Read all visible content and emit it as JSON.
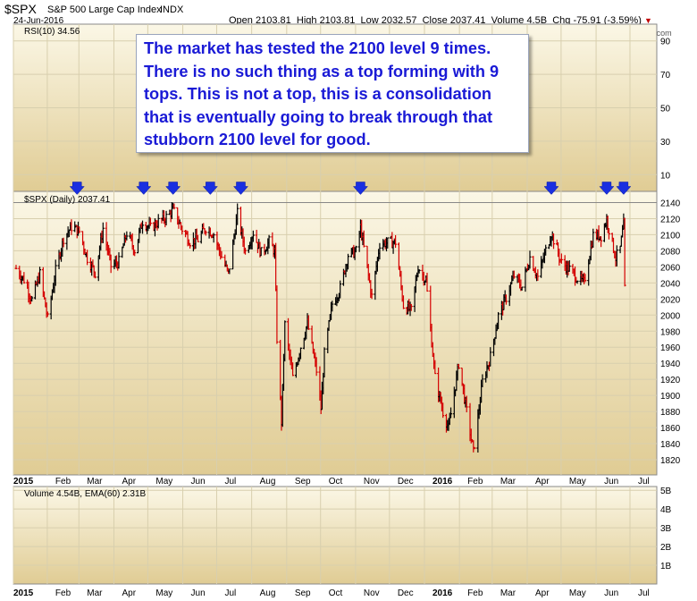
{
  "header": {
    "symbol": "$SPX",
    "name": "S&P 500 Large Cap Index",
    "exchange": "INDX",
    "date": "24-Jun-2016",
    "open_label": "Open",
    "open": "2103.81",
    "high_label": "High",
    "high": "2103.81",
    "low_label": "Low",
    "low": "2032.57",
    "close_label": "Close",
    "close": "2037.41",
    "volume_label": "Volume",
    "volume": "4.5B",
    "chg_label": "Chg",
    "chg": "-75.91 (-3.59%)",
    "chg_marker": "▼",
    "credit": "© StockCharts.com"
  },
  "annotation": [
    "The market has tested the 2100 level 9 times.",
    "There is no such thing as a top forming with 9",
    "tops. This is not a top, this is a consolidation",
    "that is eventually going to break through that",
    "stubborn 2100 level for good."
  ],
  "colors": {
    "up": "#000000",
    "down": "#d40000",
    "arrow": "#1a2fe0",
    "panel_top": "#fbf7e6",
    "panel_bottom": "#e0cc94",
    "resistance": "#888888"
  },
  "chart_data": [
    {
      "type": "line",
      "name": "rsi",
      "legend": "RSI(10) 34.56",
      "y_ticks": [
        10,
        30,
        50,
        70,
        90
      ],
      "ylim": [
        0,
        100
      ],
      "values": []
    },
    {
      "type": "ohlc",
      "name": "price",
      "legend": "$SPX (Daily) 2037.41",
      "ylim": [
        1810,
        2145
      ],
      "y_ticks": [
        1820,
        1840,
        1860,
        1880,
        1900,
        1920,
        1940,
        1960,
        1980,
        2000,
        2020,
        2040,
        2060,
        2080,
        2100,
        2120,
        2140
      ],
      "resistance": 2140,
      "x_labels": [
        "2015",
        "Feb",
        "Mar",
        "Apr",
        "May",
        "Jun",
        "Jul",
        "Aug",
        "Sep",
        "Oct",
        "Nov",
        "Dec",
        "2016",
        "Feb",
        "Mar",
        "Apr",
        "May",
        "Jun",
        "Jul"
      ],
      "path": [
        [
          "2015-01-02",
          2058
        ],
        [
          "2015-01-09",
          2044
        ],
        [
          "2015-01-16",
          2019
        ],
        [
          "2015-01-23",
          2051
        ],
        [
          "2015-01-30",
          1995
        ],
        [
          "2015-02-06",
          2055
        ],
        [
          "2015-02-13",
          2096
        ],
        [
          "2015-02-20",
          2110
        ],
        [
          "2015-02-27",
          2104
        ],
        [
          "2015-03-06",
          2071
        ],
        [
          "2015-03-13",
          2053
        ],
        [
          "2015-03-20",
          2108
        ],
        [
          "2015-03-27",
          2061
        ],
        [
          "2015-04-03",
          2066
        ],
        [
          "2015-04-10",
          2102
        ],
        [
          "2015-04-17",
          2081
        ],
        [
          "2015-04-24",
          2117
        ],
        [
          "2015-05-01",
          2108
        ],
        [
          "2015-05-08",
          2116
        ],
        [
          "2015-05-15",
          2122
        ],
        [
          "2015-05-21",
          2131
        ],
        [
          "2015-05-29",
          2107
        ],
        [
          "2015-06-05",
          2092
        ],
        [
          "2015-06-12",
          2094
        ],
        [
          "2015-06-19",
          2109
        ],
        [
          "2015-06-26",
          2101
        ],
        [
          "2015-07-02",
          2076
        ],
        [
          "2015-07-09",
          2051
        ],
        [
          "2015-07-17",
          2126
        ],
        [
          "2015-07-24",
          2079
        ],
        [
          "2015-07-31",
          2103
        ],
        [
          "2015-08-07",
          2077
        ],
        [
          "2015-08-14",
          2091
        ],
        [
          "2015-08-19",
          2079
        ],
        [
          "2015-08-21",
          1971
        ],
        [
          "2015-08-24",
          1893
        ],
        [
          "2015-08-25",
          1867
        ],
        [
          "2015-08-28",
          1988
        ],
        [
          "2015-09-04",
          1921
        ],
        [
          "2015-09-11",
          1961
        ],
        [
          "2015-09-17",
          1990
        ],
        [
          "2015-09-25",
          1931
        ],
        [
          "2015-09-29",
          1884
        ],
        [
          "2015-10-02",
          1951
        ],
        [
          "2015-10-09",
          2014
        ],
        [
          "2015-10-16",
          2033
        ],
        [
          "2015-10-23",
          2075
        ],
        [
          "2015-10-30",
          2079
        ],
        [
          "2015-11-03",
          2109
        ],
        [
          "2015-11-13",
          2023
        ],
        [
          "2015-11-20",
          2089
        ],
        [
          "2015-11-27",
          2090
        ],
        [
          "2015-12-04",
          2091
        ],
        [
          "2015-12-11",
          2012
        ],
        [
          "2015-12-18",
          2005
        ],
        [
          "2015-12-24",
          2060
        ],
        [
          "2015-12-31",
          2043
        ],
        [
          "2016-01-08",
          1922
        ],
        [
          "2016-01-15",
          1880
        ],
        [
          "2016-01-20",
          1859
        ],
        [
          "2016-01-29",
          1940
        ],
        [
          "2016-02-05",
          1880
        ],
        [
          "2016-02-11",
          1829
        ],
        [
          "2016-02-19",
          1917
        ],
        [
          "2016-02-26",
          1948
        ],
        [
          "2016-03-04",
          1999
        ],
        [
          "2016-03-11",
          2022
        ],
        [
          "2016-03-18",
          2049
        ],
        [
          "2016-03-25",
          2035
        ],
        [
          "2016-04-01",
          2072
        ],
        [
          "2016-04-08",
          2047
        ],
        [
          "2016-04-15",
          2080
        ],
        [
          "2016-04-20",
          2102
        ],
        [
          "2016-04-29",
          2065
        ],
        [
          "2016-05-06",
          2057
        ],
        [
          "2016-05-13",
          2046
        ],
        [
          "2016-05-19",
          2040
        ],
        [
          "2016-05-27",
          2099
        ],
        [
          "2016-06-03",
          2099
        ],
        [
          "2016-06-08",
          2119
        ],
        [
          "2016-06-16",
          2071
        ],
        [
          "2016-06-20",
          2083
        ],
        [
          "2016-06-23",
          2113
        ],
        [
          "2016-06-24",
          2037
        ]
      ],
      "top_arrows": [
        "2015-02-25",
        "2015-04-25",
        "2015-05-21",
        "2015-06-23",
        "2015-07-20",
        "2015-11-03",
        "2016-04-20",
        "2016-06-08",
        "2016-06-23"
      ]
    },
    {
      "type": "bar",
      "name": "volume",
      "legend": "Volume 4.54B, EMA(60) 2.31B",
      "y_ticks": [
        "1B",
        "2B",
        "3B",
        "4B",
        "5B"
      ],
      "ylim": [
        0,
        5.2
      ],
      "values": []
    }
  ]
}
